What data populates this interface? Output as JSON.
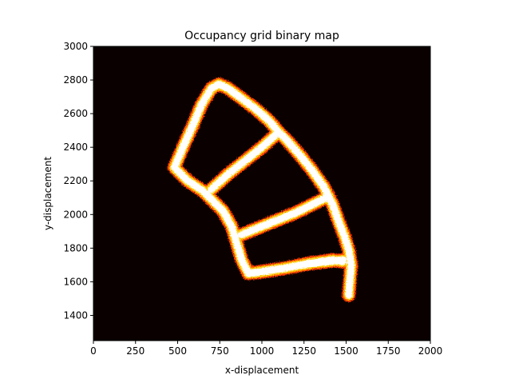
{
  "chart_data": {
    "type": "heatmap",
    "title": "Occupancy grid binary map",
    "xlabel": "x-displacement",
    "ylabel": "y-displacement",
    "xlim": [
      0,
      2000
    ],
    "ylim": [
      1250,
      3000
    ],
    "x_ticks": [
      0,
      250,
      500,
      750,
      1000,
      1250,
      1500,
      1750,
      2000
    ],
    "y_ticks": [
      1400,
      1600,
      1800,
      2000,
      2200,
      2400,
      2600,
      2800,
      3000
    ],
    "grid": false,
    "colormap": "hot",
    "background_color": "#0b0000",
    "occupied_color": "#ffffff",
    "edge_color": "#ff3c00",
    "edge_color_2": "#ffc800",
    "occupied_paths": [
      {
        "name": "outer-boundary",
        "points": [
          [
            1515,
            1520
          ],
          [
            1530,
            1700
          ],
          [
            1515,
            1790
          ],
          [
            1490,
            1870
          ],
          [
            1455,
            1960
          ],
          [
            1420,
            2060
          ],
          [
            1370,
            2160
          ],
          [
            1300,
            2260
          ],
          [
            1220,
            2360
          ],
          [
            1150,
            2440
          ],
          [
            1100,
            2490
          ],
          [
            1040,
            2560
          ],
          [
            960,
            2630
          ],
          [
            880,
            2690
          ],
          [
            800,
            2750
          ],
          [
            745,
            2775
          ],
          [
            700,
            2750
          ],
          [
            640,
            2650
          ],
          [
            590,
            2530
          ],
          [
            540,
            2420
          ],
          [
            480,
            2280
          ],
          [
            560,
            2200
          ],
          [
            650,
            2140
          ],
          [
            710,
            2080
          ],
          [
            770,
            2020
          ],
          [
            820,
            1930
          ],
          [
            850,
            1830
          ],
          [
            880,
            1730
          ],
          [
            920,
            1650
          ],
          [
            1010,
            1660
          ],
          [
            1130,
            1680
          ],
          [
            1280,
            1710
          ],
          [
            1420,
            1730
          ],
          [
            1480,
            1720
          ]
        ]
      },
      {
        "name": "cross-corridor-upper",
        "points": [
          [
            1100,
            2490
          ],
          [
            1000,
            2400
          ],
          [
            900,
            2320
          ],
          [
            800,
            2240
          ],
          [
            700,
            2150
          ]
        ]
      },
      {
        "name": "cross-corridor-middle",
        "points": [
          [
            1380,
            2100
          ],
          [
            1200,
            2010
          ],
          [
            1050,
            1950
          ],
          [
            880,
            1880
          ]
        ]
      },
      {
        "name": "cross-corridor-lower",
        "points": [
          [
            1480,
            1730
          ],
          [
            1300,
            1710
          ],
          [
            1130,
            1680
          ],
          [
            920,
            1650
          ]
        ]
      }
    ]
  }
}
